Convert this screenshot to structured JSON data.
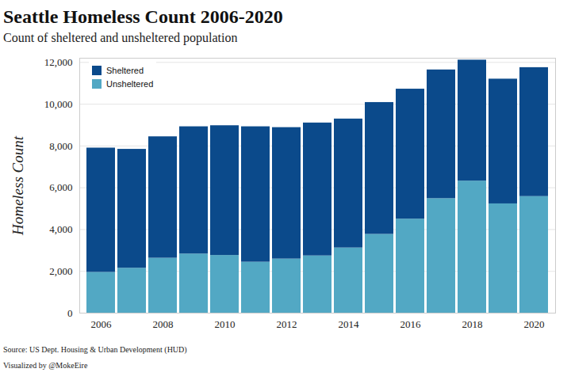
{
  "chart_data": {
    "type": "bar",
    "stacked": true,
    "title": "Seattle Homeless Count 2006-2020",
    "subtitle": "Count of sheltered and unsheltered population",
    "y_label": "Homeless Count",
    "source": "Source: US Dept. Housing & Urban Development (HUD)",
    "credit": "Visualized by @MokeEire",
    "categories": [
      "2006",
      null,
      "2008",
      null,
      "2010",
      null,
      "2012",
      null,
      "2014",
      null,
      "2016",
      null,
      "2018",
      null,
      "2020"
    ],
    "series": [
      {
        "name": "Sheltered",
        "color": "#0b4a8b",
        "values": [
          5950,
          5690,
          5810,
          6090,
          6210,
          6480,
          6290,
          6360,
          6170,
          6310,
          6220,
          6160,
          5790,
          5970,
          6170
        ]
      },
      {
        "name": "Unsheltered",
        "color": "#52a8c4",
        "values": [
          1950,
          2150,
          2630,
          2830,
          2760,
          2440,
          2590,
          2740,
          3120,
          3770,
          4500,
          5480,
          6320,
          5230,
          5580
        ]
      }
    ],
    "ylim": [
      0,
      12200
    ],
    "yticks": [
      0,
      {
        "value": 2000,
        "label": "2,000"
      },
      {
        "value": 4000,
        "label": "4,000"
      },
      {
        "value": 6000,
        "label": "6,000"
      },
      {
        "value": 8000,
        "label": "8,000"
      },
      {
        "value": 10000,
        "label": "10,000"
      },
      {
        "value": 12000,
        "label": "12,000"
      }
    ],
    "grid": true,
    "legend": "top-left"
  }
}
